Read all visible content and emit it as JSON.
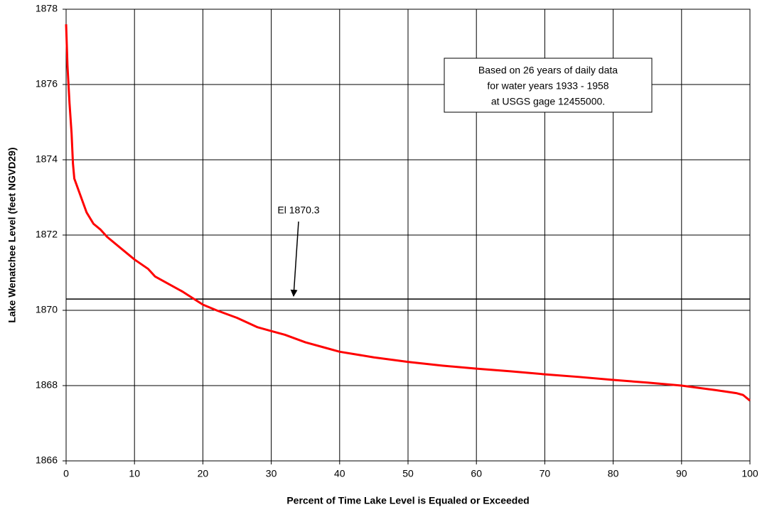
{
  "chart_data": {
    "type": "line",
    "xlabel": "Percent of Time Lake Level is Equaled or Exceeded",
    "ylabel": "Lake Wenatchee Level (feet NGVD29)",
    "x": [
      0,
      0.2,
      0.5,
      0.8,
      1,
      1.2,
      2,
      3,
      4,
      5,
      6,
      8,
      10,
      12,
      13,
      15,
      17,
      20,
      22,
      25,
      28,
      30,
      32,
      35,
      38,
      40,
      45,
      50,
      55,
      60,
      65,
      70,
      75,
      80,
      85,
      90,
      95,
      98,
      99,
      100
    ],
    "values": [
      1877.6,
      1876.5,
      1875.5,
      1874.7,
      1873.9,
      1873.5,
      1873.1,
      1872.6,
      1872.3,
      1872.15,
      1871.95,
      1871.65,
      1871.35,
      1871.1,
      1870.9,
      1870.7,
      1870.5,
      1870.15,
      1870.0,
      1869.8,
      1869.55,
      1869.45,
      1869.35,
      1869.15,
      1869.0,
      1868.9,
      1868.75,
      1868.63,
      1868.53,
      1868.45,
      1868.38,
      1868.3,
      1868.23,
      1868.15,
      1868.08,
      1868.0,
      1867.88,
      1867.8,
      1867.75,
      1867.6
    ],
    "color": "#ff0000",
    "xlim": [
      0,
      100
    ],
    "xticks": [
      0,
      10,
      20,
      30,
      40,
      50,
      60,
      70,
      80,
      90,
      100
    ],
    "ylim": [
      1866,
      1878
    ],
    "yticks": [
      1866,
      1868,
      1870,
      1872,
      1874,
      1876,
      1878
    ],
    "grid": true,
    "reference_line": {
      "value": 1870.3,
      "label": "El 1870.3"
    },
    "note": [
      "Based on 26 years of daily data",
      "for water years 1933 - 1958",
      "at USGS gage 12455000."
    ]
  }
}
